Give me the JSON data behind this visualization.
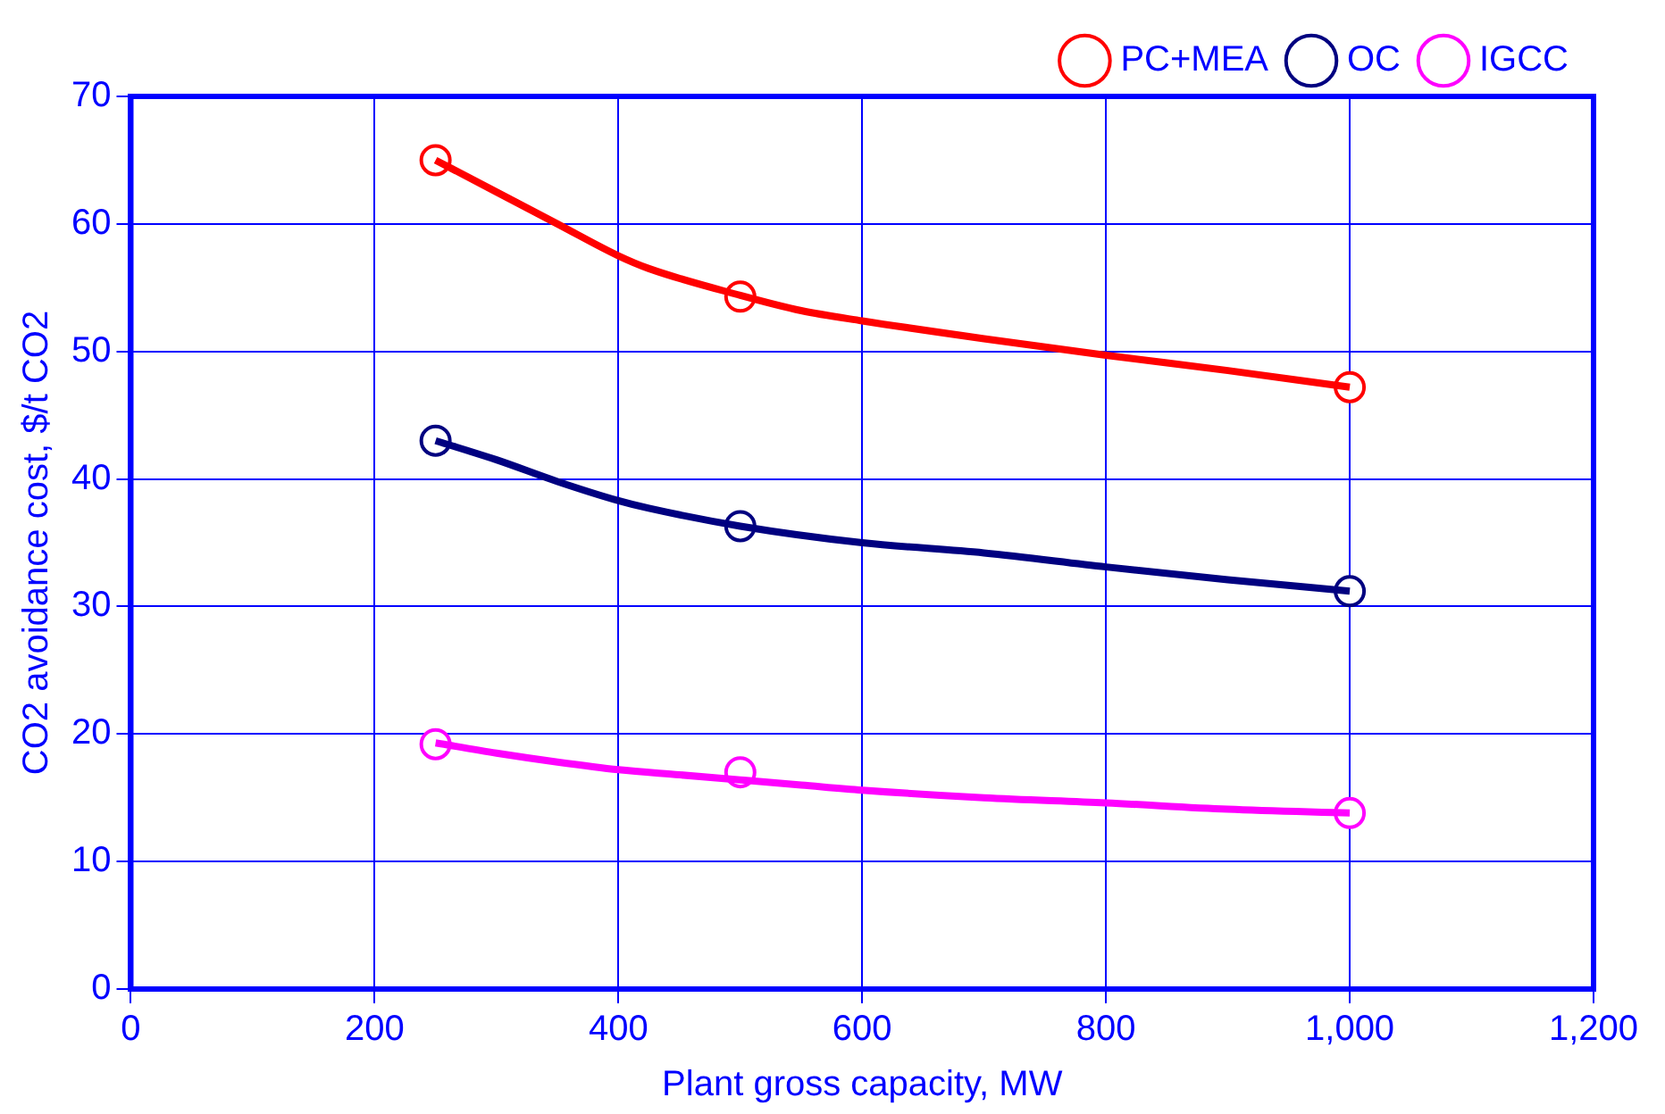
{
  "chart_data": {
    "type": "line",
    "xlabel": "Plant gross capacity, MW",
    "ylabel": "CO2 avoidance cost, $/t CO2",
    "xlim": [
      0,
      1200
    ],
    "xticks": [
      0,
      200,
      400,
      600,
      800,
      {
        "value": 1000,
        "label": "1,000"
      },
      {
        "value": 1200,
        "label": "1,200"
      }
    ],
    "ylim": [
      0,
      70
    ],
    "yticks": [
      0,
      10,
      20,
      30,
      40,
      50,
      60,
      70
    ],
    "grid": true,
    "legend": "top right",
    "series": [
      {
        "type": "line",
        "color": "#ff0000",
        "marker": "none",
        "x": [
          250,
          300,
          350,
          400,
          425,
          500,
          550,
          600,
          700,
          800,
          900,
          1000
        ],
        "values": [
          65,
          62.5,
          60,
          57.5,
          56.5,
          54.4,
          53.2,
          52.4,
          51,
          49.7,
          48.5,
          47.2
        ]
      },
      {
        "type": "line",
        "color": "#000080",
        "marker": "none",
        "x": [
          250,
          300,
          350,
          400,
          425,
          500,
          600,
          700,
          800,
          900,
          1000
        ],
        "values": [
          43,
          41.5,
          39.8,
          38.3,
          37.7,
          36.3,
          35,
          34.2,
          33.1,
          32.1,
          31.2
        ]
      },
      {
        "type": "line",
        "color": "#ff00ff",
        "marker": "none",
        "x": [
          250,
          300,
          350,
          400,
          450,
          500,
          550,
          600,
          700,
          800,
          900,
          1000
        ],
        "values": [
          19.3,
          18.5,
          17.8,
          17.2,
          16.8,
          16.4,
          16,
          15.6,
          15,
          14.6,
          14.1,
          13.8
        ]
      },
      {
        "type": "scatter",
        "name": "PC+MEA",
        "color": "#ff0000",
        "marker": "circle",
        "x": [
          250,
          500,
          1000
        ],
        "values": [
          65,
          54.3,
          47.2
        ]
      },
      {
        "type": "scatter",
        "name": "OC",
        "color": "#000080",
        "marker": "circle",
        "x": [
          250,
          500,
          1000
        ],
        "values": [
          43,
          36.3,
          31.2
        ]
      },
      {
        "type": "scatter",
        "name": "IGCC",
        "color": "#ff00ff",
        "marker": "circle",
        "x": [
          250,
          500,
          1000
        ],
        "values": [
          19.2,
          17,
          13.8
        ]
      }
    ]
  }
}
